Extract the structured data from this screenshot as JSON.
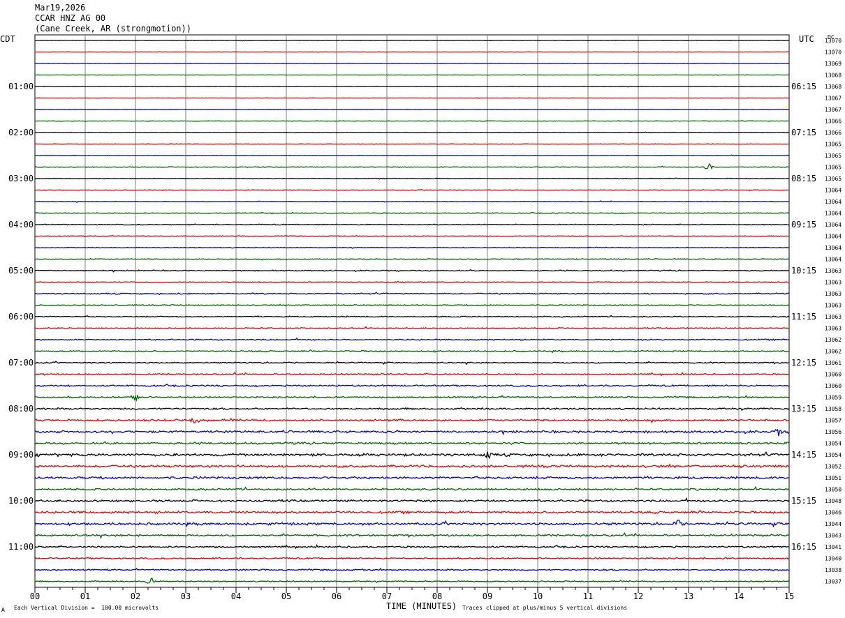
{
  "header": {
    "date": "Mar19,2026",
    "station": "CCAR HNZ AG 00",
    "location": "(Cane Creek, AR (strongmotion))"
  },
  "left_tz": "CDT",
  "right_tz": "UTC",
  "right_tag": "DC",
  "footer": {
    "scale_note": "Each Vertical Division =  100.00 microvolts",
    "clip_note": "Traces clipped at plus/minus 5 vertical divisions",
    "corner_mark": "A"
  },
  "colors": {
    "black": "#000000",
    "red": "#e00000",
    "blue": "#0000cc",
    "green": "#006600",
    "grid": "#808080"
  },
  "chart_data": {
    "type": "line",
    "xlabel": "TIME (MINUTES)",
    "xlim": [
      0,
      15
    ],
    "x_ticks": [
      "00",
      "01",
      "02",
      "03",
      "04",
      "05",
      "06",
      "07",
      "08",
      "09",
      "10",
      "11",
      "12",
      "13",
      "14",
      "15"
    ],
    "left_time_labels": [
      "01:00",
      "02:00",
      "03:00",
      "04:00",
      "05:00",
      "06:00",
      "07:00",
      "08:00",
      "09:00",
      "10:00",
      "11:00"
    ],
    "right_time_labels": [
      "06:15",
      "07:15",
      "08:15",
      "09:15",
      "10:15",
      "11:15",
      "12:15",
      "13:15",
      "14:15",
      "15:15",
      "16:15"
    ],
    "trace_colors": [
      "black",
      "red",
      "blue",
      "green"
    ],
    "trace_offsets": [
      "13070",
      "13070",
      "13069",
      "13068",
      "13068",
      "13067",
      "13067",
      "13066",
      "13066",
      "13065",
      "13065",
      "13065",
      "13065",
      "13064",
      "13064",
      "13064",
      "13064",
      "13064",
      "13064",
      "13064",
      "13063",
      "13063",
      "13063",
      "13063",
      "13063",
      "13063",
      "13062",
      "13062",
      "13061",
      "13060",
      "13060",
      "13059",
      "13058",
      "13057",
      "13056",
      "13054",
      "13054",
      "13052",
      "13051",
      "13050",
      "13048",
      "13046",
      "13044",
      "13043",
      "13041",
      "13040",
      "13038",
      "13037"
    ],
    "trace_amplitude_levels": [
      0.3,
      0.2,
      0.3,
      0.2,
      0.3,
      0.2,
      0.3,
      0.3,
      0.4,
      0.3,
      0.3,
      0.5,
      0.5,
      0.4,
      0.4,
      0.5,
      0.6,
      0.5,
      0.5,
      0.6,
      0.7,
      0.6,
      0.8,
      0.7,
      0.7,
      0.7,
      0.8,
      0.9,
      0.8,
      0.9,
      1.0,
      1.0,
      1.1,
      1.3,
      1.4,
      1.3,
      1.6,
      1.5,
      1.4,
      1.2,
      1.3,
      1.4,
      1.5,
      1.2,
      1.0,
      0.9,
      0.9,
      0.8
    ],
    "events": [
      {
        "trace": 11,
        "minute": 13.4
      },
      {
        "trace": 31,
        "minute": 2.0
      },
      {
        "trace": 33,
        "minute": 3.2
      },
      {
        "trace": 34,
        "minute": 14.8
      },
      {
        "trace": 36,
        "minute": 9.0
      },
      {
        "trace": 42,
        "minute": 12.8
      },
      {
        "trace": 47,
        "minute": 2.3
      }
    ]
  }
}
